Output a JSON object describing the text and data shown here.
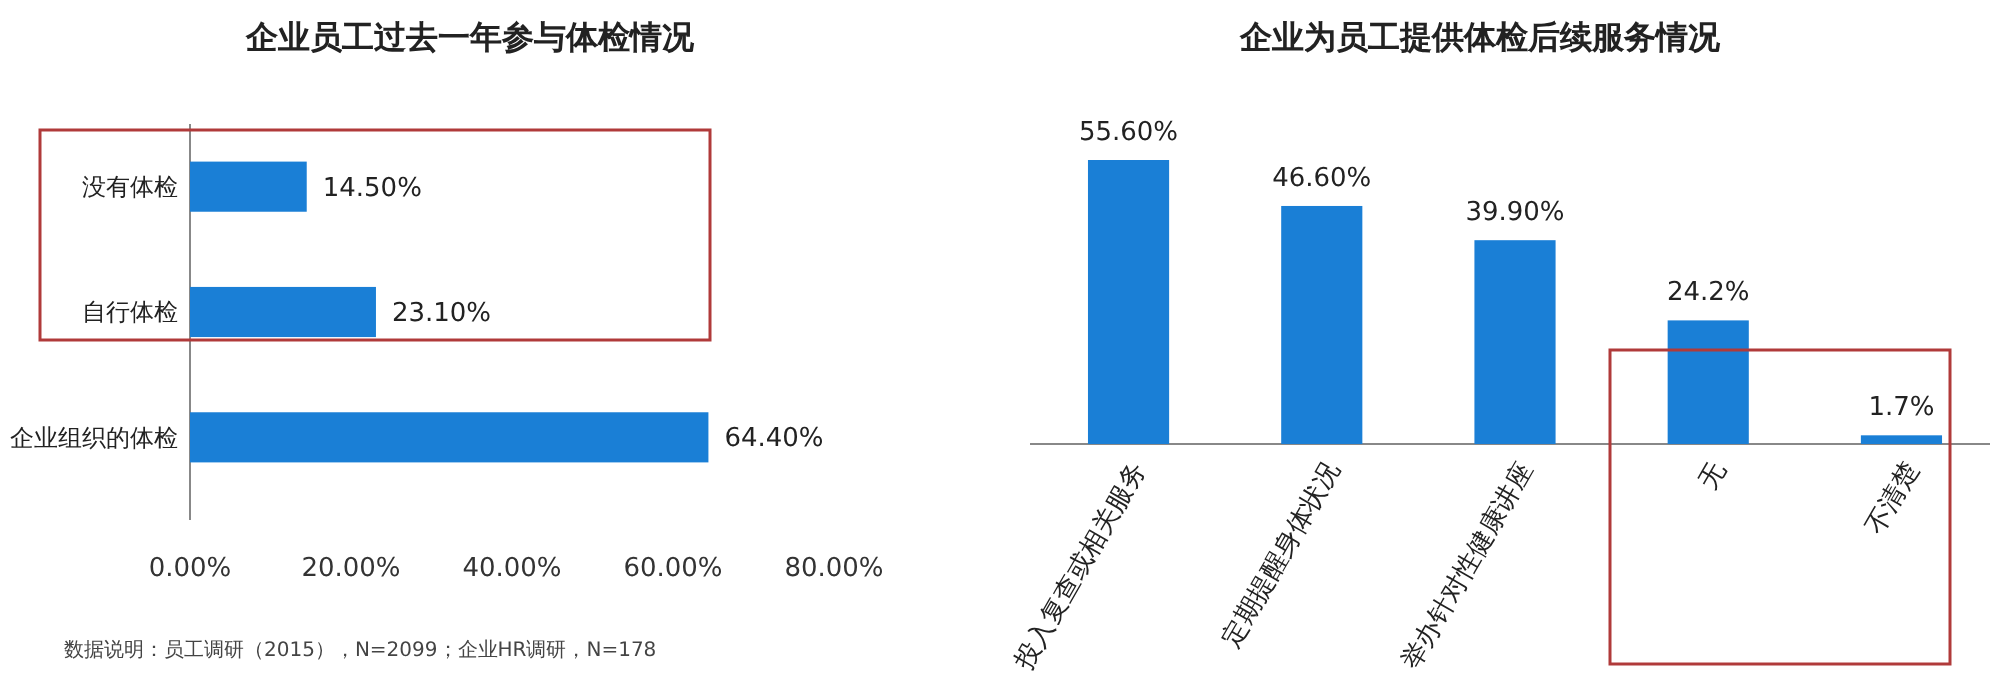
{
  "chart_data": [
    {
      "type": "bar",
      "orientation": "horizontal",
      "title": "企业员工过去一年参与体检情况",
      "categories": [
        "没有体检",
        "自行体检",
        "企业组织的体检"
      ],
      "values": [
        14.5,
        23.1,
        64.4
      ],
      "value_labels": [
        "14.50%",
        "23.10%",
        "64.40%"
      ],
      "color": "#1a7fd6",
      "xlim": [
        0,
        80
      ],
      "xticks": [
        {
          "value": 0,
          "label": "0.00%"
        },
        {
          "value": 20,
          "label": "20.00%"
        },
        {
          "value": 40,
          "label": "40.00%"
        },
        {
          "value": 60,
          "label": "60.00%"
        },
        {
          "value": 80,
          "label": "80.00%"
        }
      ],
      "annotations": [
        "数据说明：员工调研（2015），N=2099；企业HR调研，N=178"
      ]
    },
    {
      "type": "bar",
      "title": "企业为员工提供体检后续服务情况",
      "categories": [
        "投入复查或相关服务",
        "定期提醒身体状况",
        "举办针对性健康讲座",
        "无",
        "不清楚"
      ],
      "values": [
        55.6,
        46.6,
        39.9,
        24.2,
        1.7
      ],
      "value_labels": [
        "55.60%",
        "46.60%",
        "39.90%",
        "24.2%",
        "1.7%"
      ],
      "color": "#1a7fd6",
      "relative": false
    }
  ]
}
